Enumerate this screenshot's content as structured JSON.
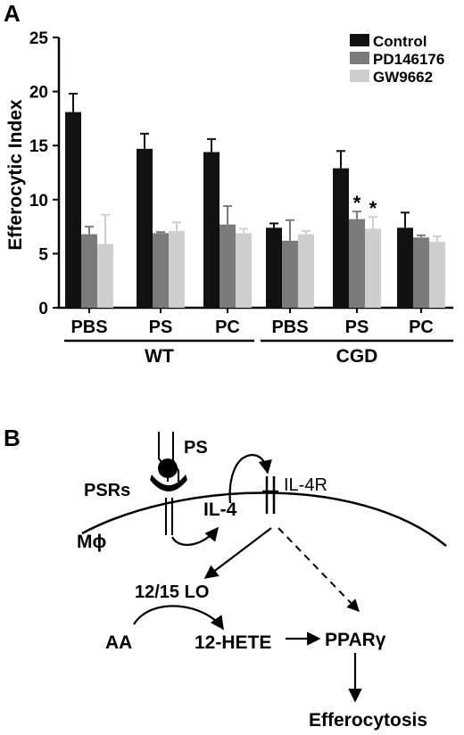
{
  "panels": {
    "a_label": "A",
    "b_label": "B"
  },
  "chart_data": {
    "type": "bar",
    "ylabel": "Efferocytic Index",
    "xlabel": "",
    "ylim": [
      0,
      25
    ],
    "yticks": [
      "0",
      "5",
      "10",
      "15",
      "20",
      "25"
    ],
    "categories": [
      "PBS",
      "PS",
      "PC",
      "PBS",
      "PS",
      "PC"
    ],
    "groups": [
      {
        "name": "WT",
        "categories": [
          "PBS",
          "PS",
          "PC"
        ]
      },
      {
        "name": "CGD",
        "categories": [
          "PBS",
          "PS",
          "PC"
        ]
      }
    ],
    "legend_position": "top-right",
    "series": [
      {
        "name": "Control",
        "color": "#111111",
        "values": [
          18.1,
          14.7,
          14.4,
          7.4,
          12.9,
          7.4
        ],
        "errors": [
          1.7,
          1.4,
          1.2,
          0.4,
          1.6,
          1.4
        ]
      },
      {
        "name": "PD146176",
        "color": "#7a7a7a",
        "values": [
          6.8,
          6.9,
          7.7,
          6.2,
          8.2,
          6.5
        ],
        "errors": [
          0.7,
          0.1,
          1.7,
          1.9,
          0.7,
          0.2
        ]
      },
      {
        "name": "GW9662",
        "color": "#cfcfcf",
        "values": [
          5.9,
          7.1,
          6.9,
          6.8,
          7.3,
          6.1
        ],
        "errors": [
          2.7,
          0.8,
          0.4,
          0.3,
          1.1,
          0.5
        ]
      }
    ],
    "significance": [
      {
        "category_index": 4,
        "series": "PD146176",
        "label": "*"
      },
      {
        "category_index": 4,
        "series": "GW9662",
        "label": "*"
      }
    ]
  },
  "diagram": {
    "ps": "PS",
    "psrs": "PSRs",
    "il4r": "IL-4R",
    "il4": "IL-4",
    "mphi": "Mϕ",
    "lo": "12/15 LO",
    "aa": "AA",
    "hete": "12-HETE",
    "ppar": "PPARγ",
    "efferocytosis": "Efferocytosis"
  }
}
